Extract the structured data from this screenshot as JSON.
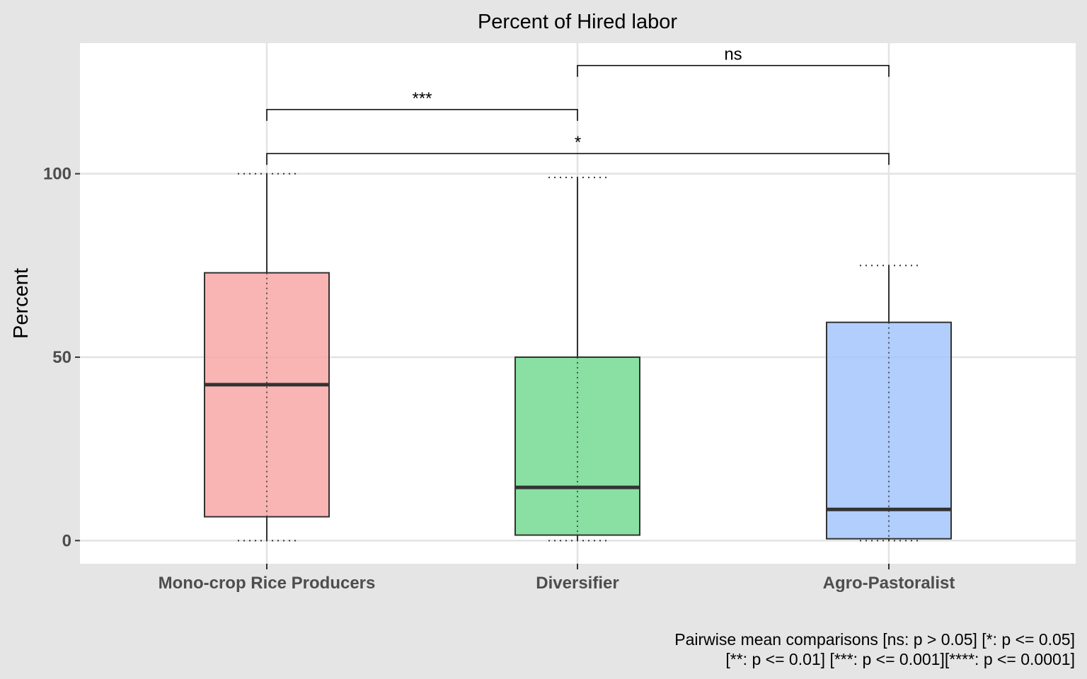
{
  "chart_data": {
    "type": "box",
    "title": "Percent of Hired labor",
    "xlabel": "",
    "ylabel": "Percent",
    "ylim": [
      -6.3,
      135.6
    ],
    "yticks": [
      0,
      50,
      100
    ],
    "ytick_labels": [
      "0",
      "50",
      "100"
    ],
    "grid": true,
    "legend": "none",
    "categories": [
      "Mono-crop Rice Producers",
      "Diversifier",
      "Agro-Pastoralist"
    ],
    "boxes": [
      {
        "category": "Mono-crop Rice Producers",
        "min": 0,
        "q1": 6.5,
        "median": 42.5,
        "q3": 73,
        "max": 100,
        "color": "#f8a3a1"
      },
      {
        "category": "Diversifier",
        "min": 0,
        "q1": 1.5,
        "median": 14.5,
        "q3": 50,
        "max": 99,
        "color": "#6dd88c"
      },
      {
        "category": "Agro-Pastoralist",
        "min": 0,
        "q1": 0.5,
        "median": 8.5,
        "q3": 59.5,
        "max": 75,
        "color": "#9ec2fb"
      }
    ],
    "comparisons": [
      {
        "from": "Mono-crop Rice Producers",
        "to": "Diversifier",
        "label": "***",
        "level": 117.5
      },
      {
        "from": "Diversifier",
        "to": "Agro-Pastoralist",
        "label": "ns",
        "level": 129.5
      },
      {
        "from": "Mono-crop Rice Producers",
        "to": "Agro-Pastoralist",
        "label": "*",
        "level": 105.5
      }
    ],
    "caption": [
      "Pairwise mean comparisons [ns: p > 0.05] [*: p <= 0.05]",
      "[**: p <= 0.01] [***: p <= 0.001][****: p <= 0.0001]"
    ]
  },
  "colors": {
    "background": "#e5e5e5",
    "panel": "#ffffff",
    "grid": "#e3e3e3",
    "box_outline": "#333333",
    "median": "#333333",
    "text": "#000000",
    "tick_text": "#4d4d4d"
  }
}
